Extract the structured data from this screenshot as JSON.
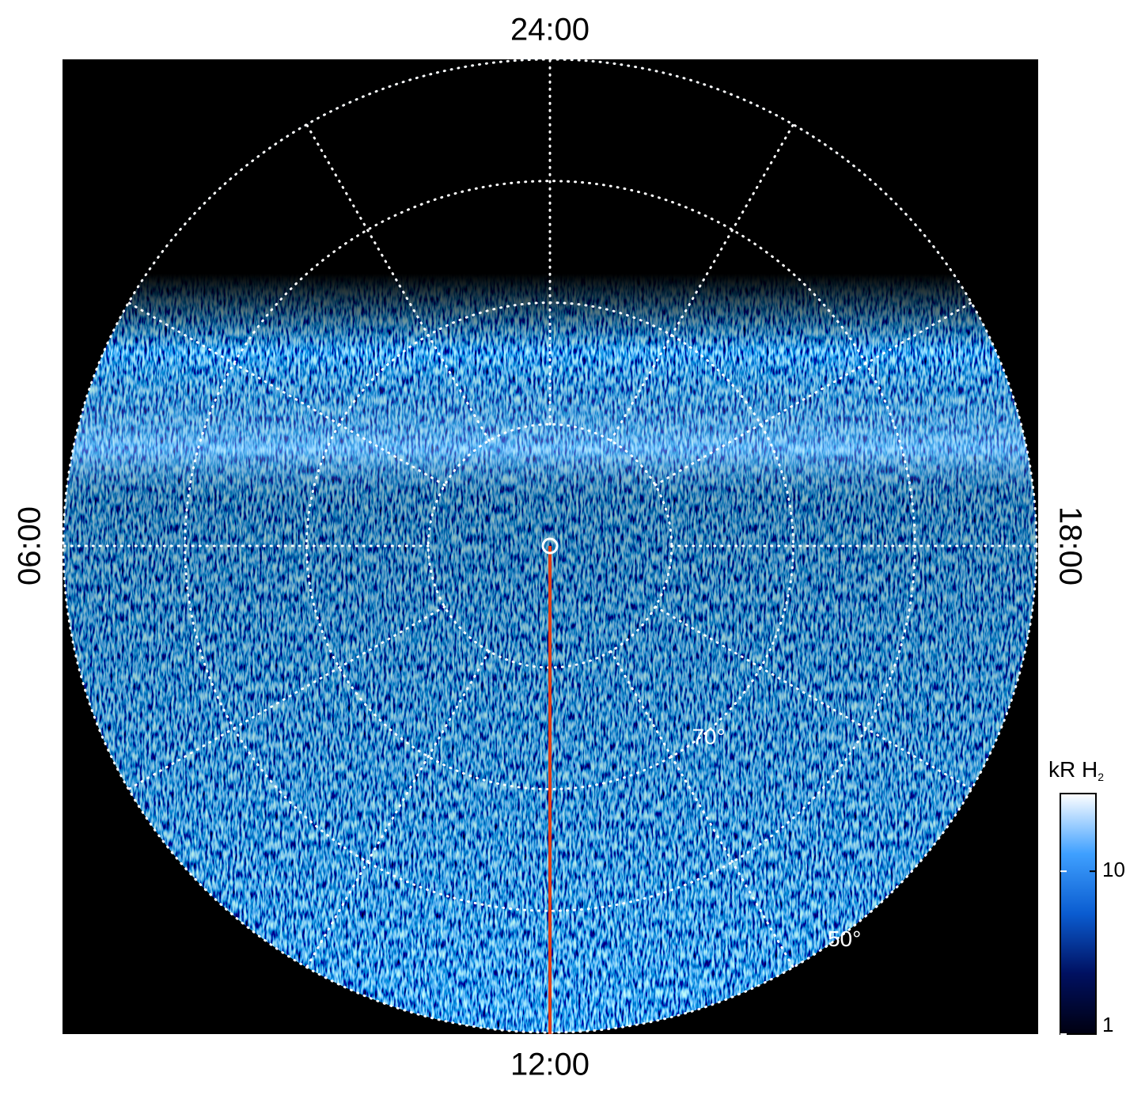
{
  "chart_data": {
    "type": "polar_image",
    "lt_labels": [
      "24:00",
      "06:00",
      "12:00",
      "18:00"
    ],
    "lat_lim": [
      90,
      50
    ],
    "lat_circles": [
      80,
      {
        "value": 70,
        "label": "70°"
      },
      60,
      {
        "value": 50,
        "label": "50°"
      }
    ],
    "meridian_count": 12,
    "colorbar": {
      "label": "kR H",
      "label_sub": "2",
      "clim": [
        1,
        30
      ],
      "cticks": [
        1,
        10
      ],
      "log": true,
      "colors": [
        "#000010",
        "#001060",
        "#0a5cd0",
        "#3fa0ff",
        "#ffffff"
      ]
    },
    "marker_color": "#e0401a"
  }
}
